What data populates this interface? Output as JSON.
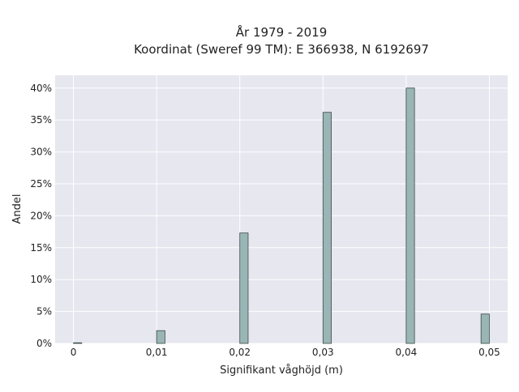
{
  "chart_data": {
    "type": "bar",
    "title_line1": "År 1979 - 2019",
    "title_line2": "Koordinat (Sweref 99 TM): E 366938, N 6192697",
    "xlabel": "Signifikant våghöjd (m)",
    "ylabel": "Andel",
    "x_ticks": [
      "0",
      "0,01",
      "0,02",
      "0,03",
      "0,04",
      "0,05"
    ],
    "x_tick_values": [
      0,
      0.01,
      0.02,
      0.03,
      0.04,
      0.05
    ],
    "y_ticks": [
      "0%",
      "5%",
      "10%",
      "15%",
      "20%",
      "25%",
      "30%",
      "35%",
      "40%"
    ],
    "y_tick_values": [
      0,
      5,
      10,
      15,
      20,
      25,
      30,
      35,
      40
    ],
    "xlim": [
      -0.0022,
      0.0522
    ],
    "ylim": [
      0,
      42
    ],
    "bars": [
      {
        "x": 0.0005,
        "value": 0.1
      },
      {
        "x": 0.0105,
        "value": 2.0
      },
      {
        "x": 0.0205,
        "value": 17.3
      },
      {
        "x": 0.0305,
        "value": 36.2
      },
      {
        "x": 0.0405,
        "value": 40.0
      },
      {
        "x": 0.0495,
        "value": 4.6
      }
    ],
    "bar_width": 0.001,
    "grid": true,
    "colors": {
      "bar_fill": "#9ab5b5",
      "bar_stroke": "#3c4a4a",
      "plot_background": "#e6e7ef",
      "grid": "#ffffff"
    }
  }
}
